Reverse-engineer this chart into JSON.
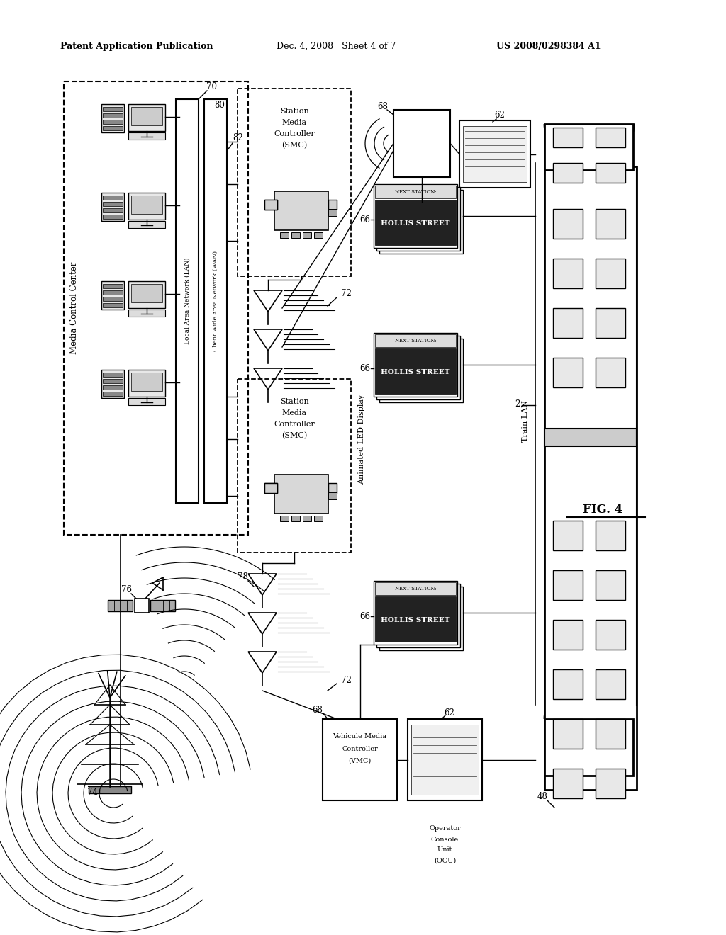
{
  "bg_color": "#ffffff",
  "header_left": "Patent Application Publication",
  "header_mid": "Dec. 4, 2008   Sheet 4 of 7",
  "header_right": "US 2008/0298384 A1",
  "fig_label": "FIG. 4"
}
